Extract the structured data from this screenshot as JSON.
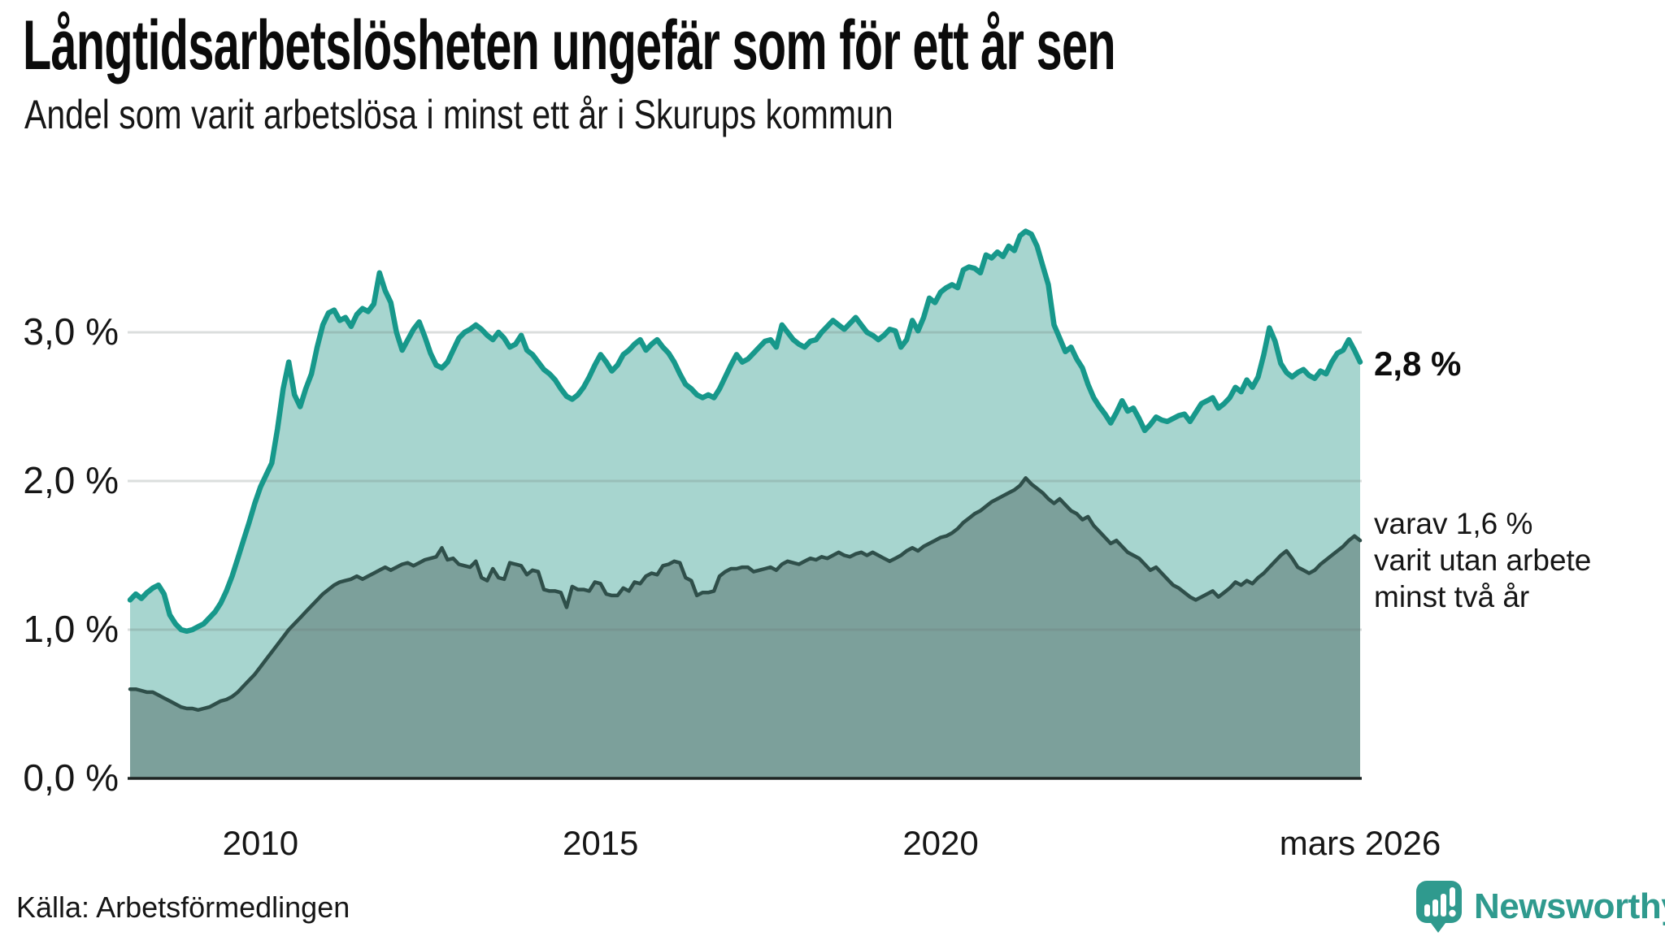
{
  "chart_data": {
    "type": "area",
    "title": "Långtidsarbetslösheten ungefär som för ett år sen",
    "subtitle": "Andel som varit arbetslösa i minst ett år i Skurups kommun",
    "unit": "%",
    "frequency": "monthly",
    "x_start": "2008-02",
    "x_end": "2026-03",
    "grid": "horizontal",
    "ylim": [
      0,
      3.8
    ],
    "y_ticks": [
      {
        "label": "0,0 %",
        "value": 0
      },
      {
        "label": "1,0 %",
        "value": 1
      },
      {
        "label": "2,0 %",
        "value": 2
      },
      {
        "label": "3,0 %",
        "value": 3
      }
    ],
    "x_ticks": [
      {
        "label": "2010",
        "month_index": 23
      },
      {
        "label": "2015",
        "month_index": 83
      },
      {
        "label": "2020",
        "month_index": 143
      },
      {
        "label": "mars 2026",
        "month_index": 217
      }
    ],
    "series": [
      {
        "name": "Andel arbetslösa minst ett år",
        "last_value_label": "2,8 %",
        "line_color": "#17988b",
        "fill_color": "#a7d5cf",
        "values": [
          1.2,
          1.24,
          1.21,
          1.25,
          1.28,
          1.3,
          1.24,
          1.1,
          1.04,
          1.0,
          0.99,
          1.0,
          1.02,
          1.04,
          1.08,
          1.12,
          1.18,
          1.26,
          1.36,
          1.48,
          1.6,
          1.72,
          1.85,
          1.96,
          2.04,
          2.12,
          2.35,
          2.62,
          2.8,
          2.58,
          2.5,
          2.62,
          2.72,
          2.9,
          3.05,
          3.13,
          3.15,
          3.08,
          3.1,
          3.04,
          3.12,
          3.16,
          3.14,
          3.19,
          3.4,
          3.28,
          3.2,
          3.0,
          2.88,
          2.95,
          3.02,
          3.07,
          2.97,
          2.86,
          2.78,
          2.76,
          2.8,
          2.88,
          2.96,
          3.0,
          3.02,
          3.05,
          3.02,
          2.98,
          2.95,
          3.0,
          2.96,
          2.9,
          2.92,
          2.98,
          2.88,
          2.85,
          2.8,
          2.75,
          2.72,
          2.68,
          2.62,
          2.57,
          2.55,
          2.58,
          2.63,
          2.7,
          2.78,
          2.85,
          2.8,
          2.74,
          2.78,
          2.85,
          2.88,
          2.92,
          2.95,
          2.88,
          2.92,
          2.95,
          2.9,
          2.86,
          2.8,
          2.72,
          2.65,
          2.62,
          2.58,
          2.56,
          2.58,
          2.56,
          2.62,
          2.7,
          2.78,
          2.85,
          2.8,
          2.82,
          2.86,
          2.9,
          2.94,
          2.95,
          2.9,
          3.05,
          3.0,
          2.95,
          2.92,
          2.9,
          2.94,
          2.95,
          3.0,
          3.04,
          3.08,
          3.05,
          3.02,
          3.06,
          3.1,
          3.05,
          3.0,
          2.98,
          2.95,
          2.98,
          3.02,
          3.01,
          2.9,
          2.95,
          3.08,
          3.01,
          3.1,
          3.23,
          3.2,
          3.27,
          3.3,
          3.32,
          3.3,
          3.42,
          3.44,
          3.43,
          3.4,
          3.52,
          3.5,
          3.54,
          3.51,
          3.58,
          3.55,
          3.65,
          3.68,
          3.66,
          3.58,
          3.45,
          3.32,
          3.05,
          2.96,
          2.87,
          2.9,
          2.82,
          2.76,
          2.65,
          2.56,
          2.5,
          2.45,
          2.39,
          2.46,
          2.54,
          2.47,
          2.49,
          2.42,
          2.34,
          2.38,
          2.43,
          2.41,
          2.4,
          2.42,
          2.44,
          2.45,
          2.4,
          2.46,
          2.52,
          2.54,
          2.56,
          2.49,
          2.52,
          2.56,
          2.63,
          2.6,
          2.68,
          2.63,
          2.7,
          2.85,
          3.03,
          2.94,
          2.79,
          2.73,
          2.7,
          2.73,
          2.75,
          2.71,
          2.69,
          2.74,
          2.72,
          2.8,
          2.86,
          2.88,
          2.95,
          2.88,
          2.8
        ]
      },
      {
        "name": "varav utan arbete minst två år",
        "last_value_label": "1,6 %",
        "line_color": "#2f4f4a",
        "fill_color": "#7ca09b",
        "values": [
          0.6,
          0.6,
          0.59,
          0.58,
          0.58,
          0.56,
          0.54,
          0.52,
          0.5,
          0.48,
          0.47,
          0.47,
          0.46,
          0.47,
          0.48,
          0.5,
          0.52,
          0.53,
          0.55,
          0.58,
          0.62,
          0.66,
          0.7,
          0.75,
          0.8,
          0.85,
          0.9,
          0.95,
          1.0,
          1.04,
          1.08,
          1.12,
          1.16,
          1.2,
          1.24,
          1.27,
          1.3,
          1.32,
          1.33,
          1.34,
          1.36,
          1.34,
          1.36,
          1.38,
          1.4,
          1.42,
          1.4,
          1.42,
          1.44,
          1.45,
          1.43,
          1.45,
          1.47,
          1.48,
          1.49,
          1.55,
          1.47,
          1.48,
          1.44,
          1.43,
          1.42,
          1.46,
          1.35,
          1.33,
          1.41,
          1.35,
          1.34,
          1.45,
          1.44,
          1.43,
          1.37,
          1.4,
          1.39,
          1.27,
          1.26,
          1.26,
          1.25,
          1.15,
          1.29,
          1.27,
          1.27,
          1.26,
          1.32,
          1.31,
          1.24,
          1.23,
          1.23,
          1.28,
          1.26,
          1.32,
          1.31,
          1.36,
          1.38,
          1.37,
          1.43,
          1.44,
          1.46,
          1.45,
          1.35,
          1.33,
          1.23,
          1.25,
          1.25,
          1.26,
          1.36,
          1.39,
          1.41,
          1.41,
          1.42,
          1.42,
          1.39,
          1.4,
          1.41,
          1.42,
          1.4,
          1.44,
          1.46,
          1.45,
          1.44,
          1.46,
          1.48,
          1.47,
          1.49,
          1.48,
          1.5,
          1.52,
          1.5,
          1.49,
          1.51,
          1.52,
          1.5,
          1.52,
          1.5,
          1.48,
          1.46,
          1.48,
          1.5,
          1.53,
          1.55,
          1.53,
          1.56,
          1.58,
          1.6,
          1.62,
          1.63,
          1.65,
          1.68,
          1.72,
          1.75,
          1.78,
          1.8,
          1.83,
          1.86,
          1.88,
          1.9,
          1.92,
          1.94,
          1.97,
          2.02,
          1.98,
          1.95,
          1.92,
          1.88,
          1.85,
          1.88,
          1.84,
          1.8,
          1.78,
          1.74,
          1.76,
          1.7,
          1.66,
          1.62,
          1.58,
          1.6,
          1.56,
          1.52,
          1.5,
          1.48,
          1.44,
          1.4,
          1.42,
          1.38,
          1.34,
          1.3,
          1.28,
          1.25,
          1.22,
          1.2,
          1.22,
          1.24,
          1.26,
          1.22,
          1.25,
          1.28,
          1.32,
          1.3,
          1.33,
          1.31,
          1.35,
          1.38,
          1.42,
          1.46,
          1.5,
          1.53,
          1.48,
          1.42,
          1.4,
          1.38,
          1.4,
          1.44,
          1.47,
          1.5,
          1.53,
          1.56,
          1.6,
          1.63,
          1.6
        ]
      }
    ],
    "axis_colors": {
      "gridline": "#68746f",
      "baseline": "#1d2422",
      "label": "#161616"
    }
  },
  "annotations": {
    "latest_total": "2,8 %",
    "two_year_note": "varav 1,6 %\nvarit utan arbete\nminst två år"
  },
  "footer": {
    "source": "Källa: Arbetsförmedlingen",
    "brand": "Newsworthy"
  }
}
